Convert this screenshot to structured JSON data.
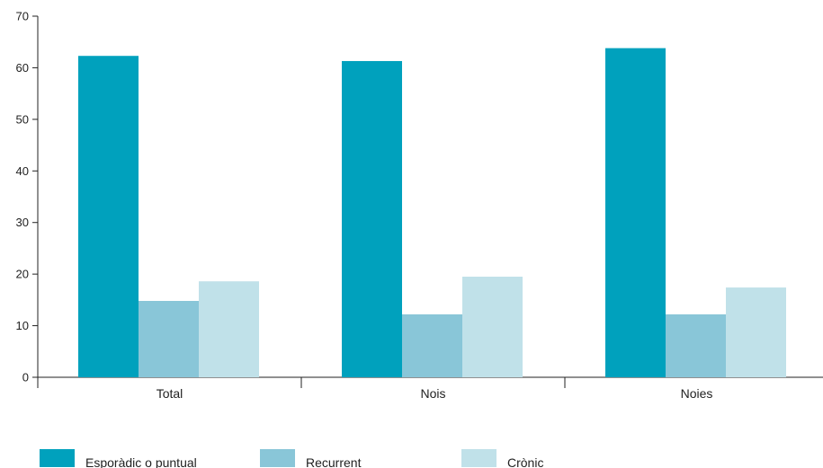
{
  "chart_data": {
    "type": "bar",
    "categories": [
      "Total",
      "Nois",
      "Noies"
    ],
    "series": [
      {
        "name": "Esporàdic o puntual",
        "color": "#00a1bd",
        "values": [
          62.3,
          61.3,
          63.8
        ]
      },
      {
        "name": "Recurrent",
        "color": "#89c6d8",
        "values": [
          14.8,
          12.2,
          12.2
        ]
      },
      {
        "name": "Crònic",
        "color": "#c0e1e9",
        "values": [
          18.6,
          19.5,
          17.4
        ]
      }
    ],
    "ylim": [
      0,
      70
    ],
    "yticks": [
      0,
      10,
      20,
      30,
      40,
      50,
      60,
      70
    ],
    "xlabel": "",
    "ylabel": "",
    "title": "",
    "grid": false,
    "legend_position": "bottom"
  }
}
